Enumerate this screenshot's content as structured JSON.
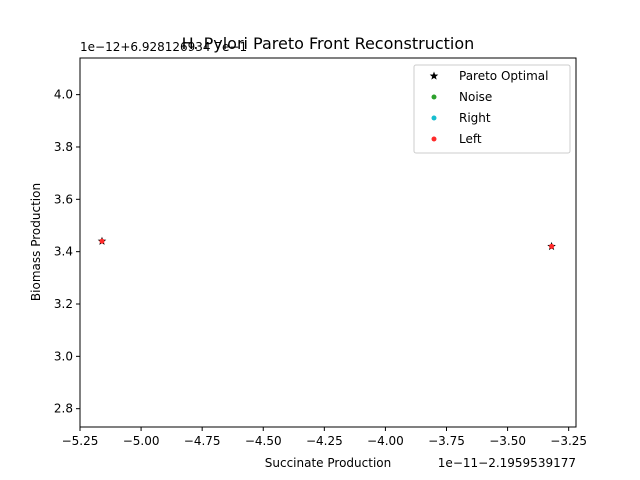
{
  "chart_data": {
    "type": "scatter",
    "title": "H. Pylori Pareto Front Reconstruction",
    "xlabel": "Succinate Production",
    "ylabel": "Biomass Production",
    "x_offset_label": "1e−11−2.1959539177",
    "y_offset_label": "1e−12+6.928126934 7e−1",
    "xlim": [
      -5.25,
      -3.22
    ],
    "ylim": [
      2.73,
      4.14
    ],
    "x_ticks": [
      -5.25,
      -5.0,
      -4.75,
      -4.5,
      -4.25,
      -4.0,
      -3.75,
      -3.5,
      -3.25
    ],
    "x_tick_labels": [
      "−5.25",
      "−5.00",
      "−4.75",
      "−4.50",
      "−4.25",
      "−4.00",
      "−3.75",
      "−3.50",
      "−3.25"
    ],
    "y_ticks": [
      2.8,
      3.0,
      3.2,
      3.4,
      3.6,
      3.8,
      4.0
    ],
    "y_tick_labels": [
      "2.8",
      "3.0",
      "3.2",
      "3.4",
      "3.6",
      "3.8",
      "4.0"
    ],
    "grid": false,
    "legend_position": "top-right",
    "series": [
      {
        "name": "Pareto Optimal",
        "marker": "star",
        "color": "#000000",
        "points": [
          [
            -5.16,
            3.44
          ],
          [
            -3.32,
            3.42
          ]
        ]
      },
      {
        "name": "Noise",
        "marker": "dot",
        "color": "#2ca02c",
        "points": []
      },
      {
        "name": "Right",
        "marker": "dot",
        "color": "#17becf",
        "points": []
      },
      {
        "name": "Left",
        "marker": "dot",
        "color": "#ff2a2a",
        "points": [
          [
            -5.16,
            3.44
          ],
          [
            -3.32,
            3.42
          ]
        ]
      }
    ]
  }
}
